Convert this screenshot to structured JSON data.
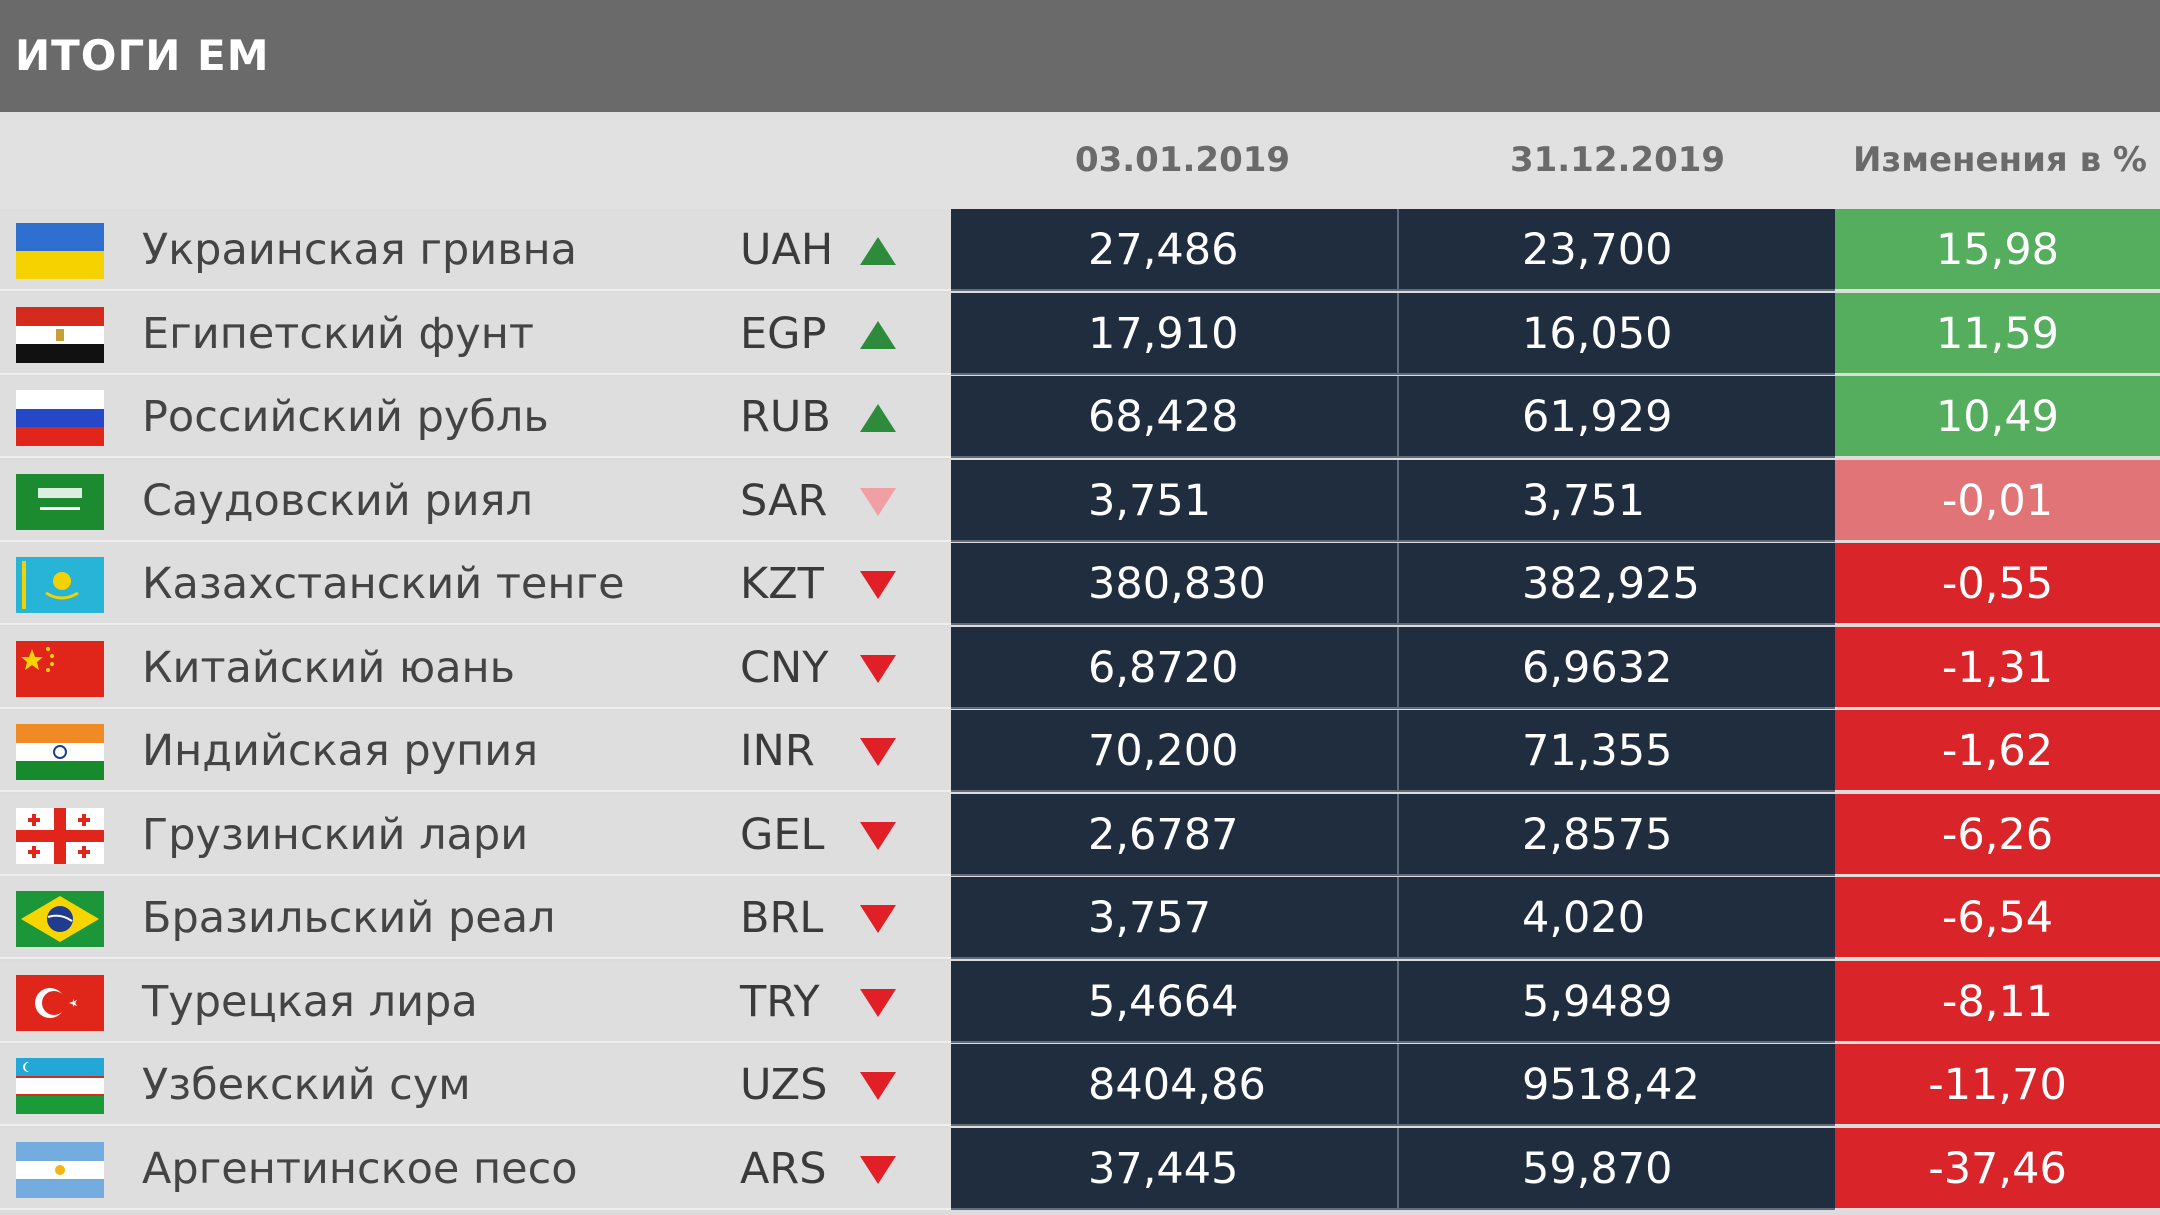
{
  "title": "ИТОГИ ЕМ",
  "columns": {
    "date_start": "03.01.2019",
    "date_end": "31.12.2019",
    "change": "Изменения в %"
  },
  "colors": {
    "up_arrow": "#2e8b3c",
    "down_arrow": "#e01f26",
    "down_arrow_light": "#f0a0a4",
    "pos_cell": "#55ad5e",
    "neg_cell": "#d9252a",
    "neg_cell_light": "#e07476",
    "value_cell": "#1f2d3f"
  },
  "chart_data": {
    "type": "table",
    "title": "ИТОГИ ЕМ",
    "columns": [
      "03.01.2019",
      "31.12.2019",
      "Изменения в %"
    ],
    "rows": [
      {
        "name": "Украинская гривна",
        "code": "UAH",
        "flag": "ukraine-flag-icon",
        "direction": "up",
        "start": "27,486",
        "end": "23,700",
        "change": "15,98"
      },
      {
        "name": "Египетский фунт",
        "code": "EGP",
        "flag": "egypt-flag-icon",
        "direction": "up",
        "start": "17,910",
        "end": "16,050",
        "change": "11,59"
      },
      {
        "name": "Российский рубль",
        "code": "RUB",
        "flag": "russia-flag-icon",
        "direction": "up",
        "start": "68,428",
        "end": "61,929",
        "change": "10,49"
      },
      {
        "name": "Саудовский риял",
        "code": "SAR",
        "flag": "saudi-arabia-flag-icon",
        "direction": "down-light",
        "start": "3,751",
        "end": "3,751",
        "change": "-0,01"
      },
      {
        "name": "Казахстанский тенге",
        "code": "KZT",
        "flag": "kazakhstan-flag-icon",
        "direction": "down",
        "start": "380,830",
        "end": "382,925",
        "change": "-0,55"
      },
      {
        "name": "Китайский юань",
        "code": "CNY",
        "flag": "china-flag-icon",
        "direction": "down",
        "start": "6,8720",
        "end": "6,9632",
        "change": "-1,31"
      },
      {
        "name": "Индийская рупия",
        "code": "INR",
        "flag": "india-flag-icon",
        "direction": "down",
        "start": "70,200",
        "end": "71,355",
        "change": "-1,62"
      },
      {
        "name": "Грузинский лари",
        "code": "GEL",
        "flag": "georgia-flag-icon",
        "direction": "down",
        "start": "2,6787",
        "end": "2,8575",
        "change": "-6,26"
      },
      {
        "name": "Бразильский реал",
        "code": "BRL",
        "flag": "brazil-flag-icon",
        "direction": "down",
        "start": "3,757",
        "end": "4,020",
        "change": "-6,54"
      },
      {
        "name": "Турецкая лира",
        "code": "TRY",
        "flag": "turkey-flag-icon",
        "direction": "down",
        "start": "5,4664",
        "end": "5,9489",
        "change": "-8,11"
      },
      {
        "name": "Узбекский сум",
        "code": "UZS",
        "flag": "uzbekistan-flag-icon",
        "direction": "down",
        "start": "8404,86",
        "end": "9518,42",
        "change": "-11,70"
      },
      {
        "name": "Аргентинское песо",
        "code": "ARS",
        "flag": "argentina-flag-icon",
        "direction": "down",
        "start": "37,445",
        "end": "59,870",
        "change": "-37,46"
      }
    ]
  }
}
